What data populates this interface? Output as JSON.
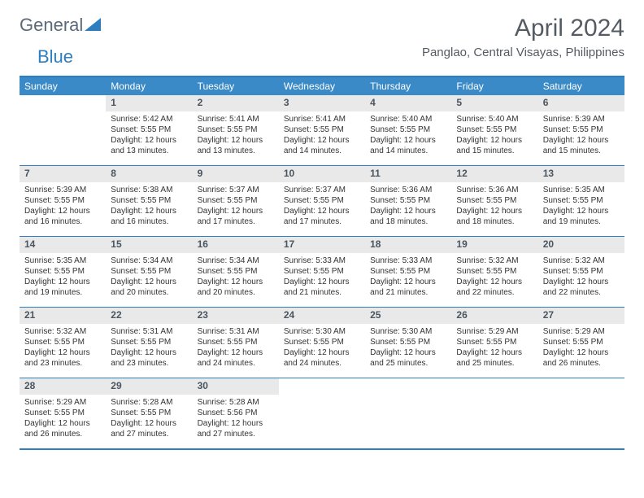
{
  "logo": {
    "text1": "General",
    "text2": "Blue"
  },
  "title": "April 2024",
  "subtitle": "Panglao, Central Visayas, Philippines",
  "colors": {
    "header_bar": "#3a8ac7",
    "border": "#2f7fc0",
    "daynum_bg": "#e9e9e9",
    "text": "#333333",
    "title": "#555b62"
  },
  "dow": [
    "Sunday",
    "Monday",
    "Tuesday",
    "Wednesday",
    "Thursday",
    "Friday",
    "Saturday"
  ],
  "weeks": [
    [
      {
        "n": "",
        "sr": "",
        "ss": "",
        "d1": "",
        "d2": ""
      },
      {
        "n": "1",
        "sr": "Sunrise: 5:42 AM",
        "ss": "Sunset: 5:55 PM",
        "d1": "Daylight: 12 hours",
        "d2": "and 13 minutes."
      },
      {
        "n": "2",
        "sr": "Sunrise: 5:41 AM",
        "ss": "Sunset: 5:55 PM",
        "d1": "Daylight: 12 hours",
        "d2": "and 13 minutes."
      },
      {
        "n": "3",
        "sr": "Sunrise: 5:41 AM",
        "ss": "Sunset: 5:55 PM",
        "d1": "Daylight: 12 hours",
        "d2": "and 14 minutes."
      },
      {
        "n": "4",
        "sr": "Sunrise: 5:40 AM",
        "ss": "Sunset: 5:55 PM",
        "d1": "Daylight: 12 hours",
        "d2": "and 14 minutes."
      },
      {
        "n": "5",
        "sr": "Sunrise: 5:40 AM",
        "ss": "Sunset: 5:55 PM",
        "d1": "Daylight: 12 hours",
        "d2": "and 15 minutes."
      },
      {
        "n": "6",
        "sr": "Sunrise: 5:39 AM",
        "ss": "Sunset: 5:55 PM",
        "d1": "Daylight: 12 hours",
        "d2": "and 15 minutes."
      }
    ],
    [
      {
        "n": "7",
        "sr": "Sunrise: 5:39 AM",
        "ss": "Sunset: 5:55 PM",
        "d1": "Daylight: 12 hours",
        "d2": "and 16 minutes."
      },
      {
        "n": "8",
        "sr": "Sunrise: 5:38 AM",
        "ss": "Sunset: 5:55 PM",
        "d1": "Daylight: 12 hours",
        "d2": "and 16 minutes."
      },
      {
        "n": "9",
        "sr": "Sunrise: 5:37 AM",
        "ss": "Sunset: 5:55 PM",
        "d1": "Daylight: 12 hours",
        "d2": "and 17 minutes."
      },
      {
        "n": "10",
        "sr": "Sunrise: 5:37 AM",
        "ss": "Sunset: 5:55 PM",
        "d1": "Daylight: 12 hours",
        "d2": "and 17 minutes."
      },
      {
        "n": "11",
        "sr": "Sunrise: 5:36 AM",
        "ss": "Sunset: 5:55 PM",
        "d1": "Daylight: 12 hours",
        "d2": "and 18 minutes."
      },
      {
        "n": "12",
        "sr": "Sunrise: 5:36 AM",
        "ss": "Sunset: 5:55 PM",
        "d1": "Daylight: 12 hours",
        "d2": "and 18 minutes."
      },
      {
        "n": "13",
        "sr": "Sunrise: 5:35 AM",
        "ss": "Sunset: 5:55 PM",
        "d1": "Daylight: 12 hours",
        "d2": "and 19 minutes."
      }
    ],
    [
      {
        "n": "14",
        "sr": "Sunrise: 5:35 AM",
        "ss": "Sunset: 5:55 PM",
        "d1": "Daylight: 12 hours",
        "d2": "and 19 minutes."
      },
      {
        "n": "15",
        "sr": "Sunrise: 5:34 AM",
        "ss": "Sunset: 5:55 PM",
        "d1": "Daylight: 12 hours",
        "d2": "and 20 minutes."
      },
      {
        "n": "16",
        "sr": "Sunrise: 5:34 AM",
        "ss": "Sunset: 5:55 PM",
        "d1": "Daylight: 12 hours",
        "d2": "and 20 minutes."
      },
      {
        "n": "17",
        "sr": "Sunrise: 5:33 AM",
        "ss": "Sunset: 5:55 PM",
        "d1": "Daylight: 12 hours",
        "d2": "and 21 minutes."
      },
      {
        "n": "18",
        "sr": "Sunrise: 5:33 AM",
        "ss": "Sunset: 5:55 PM",
        "d1": "Daylight: 12 hours",
        "d2": "and 21 minutes."
      },
      {
        "n": "19",
        "sr": "Sunrise: 5:32 AM",
        "ss": "Sunset: 5:55 PM",
        "d1": "Daylight: 12 hours",
        "d2": "and 22 minutes."
      },
      {
        "n": "20",
        "sr": "Sunrise: 5:32 AM",
        "ss": "Sunset: 5:55 PM",
        "d1": "Daylight: 12 hours",
        "d2": "and 22 minutes."
      }
    ],
    [
      {
        "n": "21",
        "sr": "Sunrise: 5:32 AM",
        "ss": "Sunset: 5:55 PM",
        "d1": "Daylight: 12 hours",
        "d2": "and 23 minutes."
      },
      {
        "n": "22",
        "sr": "Sunrise: 5:31 AM",
        "ss": "Sunset: 5:55 PM",
        "d1": "Daylight: 12 hours",
        "d2": "and 23 minutes."
      },
      {
        "n": "23",
        "sr": "Sunrise: 5:31 AM",
        "ss": "Sunset: 5:55 PM",
        "d1": "Daylight: 12 hours",
        "d2": "and 24 minutes."
      },
      {
        "n": "24",
        "sr": "Sunrise: 5:30 AM",
        "ss": "Sunset: 5:55 PM",
        "d1": "Daylight: 12 hours",
        "d2": "and 24 minutes."
      },
      {
        "n": "25",
        "sr": "Sunrise: 5:30 AM",
        "ss": "Sunset: 5:55 PM",
        "d1": "Daylight: 12 hours",
        "d2": "and 25 minutes."
      },
      {
        "n": "26",
        "sr": "Sunrise: 5:29 AM",
        "ss": "Sunset: 5:55 PM",
        "d1": "Daylight: 12 hours",
        "d2": "and 25 minutes."
      },
      {
        "n": "27",
        "sr": "Sunrise: 5:29 AM",
        "ss": "Sunset: 5:55 PM",
        "d1": "Daylight: 12 hours",
        "d2": "and 26 minutes."
      }
    ],
    [
      {
        "n": "28",
        "sr": "Sunrise: 5:29 AM",
        "ss": "Sunset: 5:55 PM",
        "d1": "Daylight: 12 hours",
        "d2": "and 26 minutes."
      },
      {
        "n": "29",
        "sr": "Sunrise: 5:28 AM",
        "ss": "Sunset: 5:55 PM",
        "d1": "Daylight: 12 hours",
        "d2": "and 27 minutes."
      },
      {
        "n": "30",
        "sr": "Sunrise: 5:28 AM",
        "ss": "Sunset: 5:56 PM",
        "d1": "Daylight: 12 hours",
        "d2": "and 27 minutes."
      },
      {
        "n": "",
        "sr": "",
        "ss": "",
        "d1": "",
        "d2": ""
      },
      {
        "n": "",
        "sr": "",
        "ss": "",
        "d1": "",
        "d2": ""
      },
      {
        "n": "",
        "sr": "",
        "ss": "",
        "d1": "",
        "d2": ""
      },
      {
        "n": "",
        "sr": "",
        "ss": "",
        "d1": "",
        "d2": ""
      }
    ]
  ]
}
